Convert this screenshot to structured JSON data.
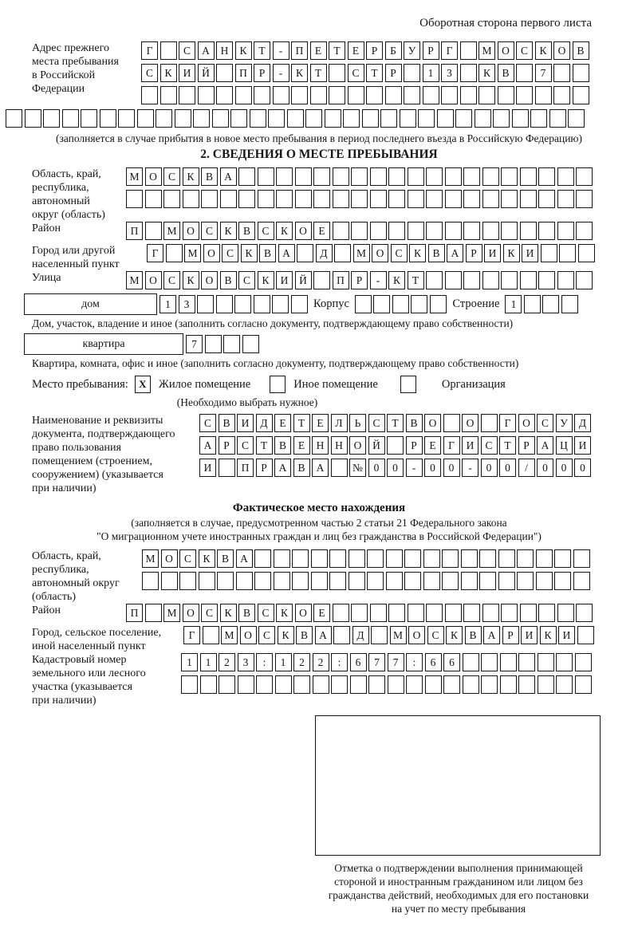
{
  "colors": {
    "ink": "#161616",
    "paper": "#ffffff"
  },
  "header": {
    "title": "Оборотная сторона первого листа"
  },
  "prev_address": {
    "label": [
      "Адрес прежнего",
      "места пребывания",
      "в Российской",
      "Федерации"
    ],
    "row1": [
      "Г",
      "",
      "С",
      "А",
      "Н",
      "К",
      "Т",
      "-",
      "П",
      "Е",
      "Т",
      "Е",
      "Р",
      "Б",
      "У",
      "Р",
      "Г",
      "",
      "М",
      "О",
      "С",
      "К",
      "О",
      "В"
    ],
    "row2": [
      "С",
      "К",
      "И",
      "Й",
      "",
      "П",
      "Р",
      "-",
      "К",
      "Т",
      "",
      "С",
      "Т",
      "Р",
      "",
      "1",
      "3",
      "",
      "К",
      "В",
      "",
      "7",
      "",
      ""
    ],
    "row3": 24,
    "row4": 31,
    "note": "(заполняется в случае прибытия в новое место пребывания в период последнего въезда в Российскую Федерацию)"
  },
  "section2": {
    "title": "2. СВЕДЕНИЯ О МЕСТЕ ПРЕБЫВАНИЯ",
    "region": {
      "label": [
        "Область, край,",
        "республика,",
        "автономный",
        "округ (область)"
      ],
      "row1": [
        "М",
        "О",
        "С",
        "К",
        "В",
        "А",
        "",
        "",
        "",
        "",
        "",
        "",
        "",
        "",
        "",
        "",
        "",
        "",
        "",
        "",
        "",
        "",
        "",
        "",
        ""
      ],
      "row2": 25
    },
    "district": {
      "label": "Район",
      "row": [
        "П",
        "",
        "М",
        "О",
        "С",
        "К",
        "В",
        "С",
        "К",
        "О",
        "Е",
        "",
        "",
        "",
        "",
        "",
        "",
        "",
        "",
        "",
        "",
        "",
        "",
        "",
        ""
      ]
    },
    "city": {
      "label": [
        "Город или другой",
        "населенный пункт"
      ],
      "row": [
        "Г",
        "",
        "М",
        "О",
        "С",
        "К",
        "В",
        "А",
        "",
        "Д",
        "",
        "М",
        "О",
        "С",
        "К",
        "В",
        "А",
        "Р",
        "И",
        "К",
        "И",
        "",
        "",
        ""
      ]
    },
    "street": {
      "label": "Улица",
      "row": [
        "М",
        "О",
        "С",
        "К",
        "О",
        "В",
        "С",
        "К",
        "И",
        "Й",
        "",
        "П",
        "Р",
        "-",
        "К",
        "Т",
        "",
        "",
        "",
        "",
        "",
        "",
        "",
        "",
        ""
      ]
    },
    "house": {
      "box_label": "дом",
      "number": [
        "1",
        "3",
        "",
        "",
        "",
        "",
        "",
        ""
      ],
      "korpus_label": "Корпус",
      "korpus_boxes": 5,
      "stroenie_label": "Строение",
      "stroenie": [
        "1",
        "",
        "",
        ""
      ]
    },
    "house_note": "Дом, участок, владение и иное (заполнить согласно документу, подтверждающему право собственности)",
    "apartment": {
      "box_label": "квартира",
      "number": [
        "7",
        "",
        "",
        ""
      ]
    },
    "apartment_note": "Квартира, комната, офис и иное (заполнить согласно документу, подтверждающему право собственности)",
    "place_type": {
      "label": "Место пребывания:",
      "options": [
        {
          "label": "Жилое помещение",
          "mark": "X"
        },
        {
          "label": "Иное помещение",
          "mark": ""
        },
        {
          "label": "Организация",
          "mark": ""
        }
      ],
      "note": "(Необходимо выбрать нужное)"
    },
    "document": {
      "label": [
        "Наименование и реквизиты",
        "документа, подтверждающего",
        "право пользования",
        "помещением (строением,",
        "сооружением) (указывается",
        "при наличии)"
      ],
      "row1": [
        "С",
        "В",
        "И",
        "Д",
        "Е",
        "Т",
        "Е",
        "Л",
        "Ь",
        "С",
        "Т",
        "В",
        "О",
        "",
        "О",
        "",
        "Г",
        "О",
        "С",
        "У",
        "Д"
      ],
      "row2": [
        "А",
        "Р",
        "С",
        "Т",
        "В",
        "Е",
        "Н",
        "Н",
        "О",
        "Й",
        "",
        "Р",
        "Е",
        "Г",
        "И",
        "С",
        "Т",
        "Р",
        "А",
        "Ц",
        "И"
      ],
      "row3": [
        "И",
        "",
        "П",
        "Р",
        "А",
        "В",
        "А",
        "",
        "№",
        "0",
        "0",
        "-",
        "0",
        "0",
        "-",
        "0",
        "0",
        "/",
        "0",
        "0",
        "0"
      ]
    }
  },
  "actual_location": {
    "title": "Фактическое место нахождения",
    "notes": [
      "(заполняется в случае, предусмотренном частью 2 статьи 21 Федерального закона",
      "\"О миграционном учете иностранных граждан и лиц без гражданства в Российской Федерации\")"
    ],
    "region": {
      "label": [
        "Область, край,",
        "республика,",
        "автономный округ",
        "(область)"
      ],
      "row1": [
        "М",
        "О",
        "С",
        "К",
        "В",
        "А",
        "",
        "",
        "",
        "",
        "",
        "",
        "",
        "",
        "",
        "",
        "",
        "",
        "",
        "",
        "",
        "",
        "",
        ""
      ],
      "row2": 24
    },
    "district": {
      "label": "Район",
      "row": [
        "П",
        "",
        "М",
        "О",
        "С",
        "К",
        "В",
        "С",
        "К",
        "О",
        "Е",
        "",
        "",
        "",
        "",
        "",
        "",
        "",
        "",
        "",
        "",
        "",
        "",
        "",
        ""
      ]
    },
    "city": {
      "label": [
        "Город, сельское поселение,",
        "иной населенный пункт"
      ],
      "row": [
        "Г",
        "",
        "М",
        "О",
        "С",
        "К",
        "В",
        "А",
        "",
        "Д",
        "",
        "М",
        "О",
        "С",
        "К",
        "В",
        "А",
        "Р",
        "И",
        "К",
        "И",
        ""
      ]
    },
    "cadastre": {
      "label": [
        "Кадастровый номер",
        "земельного или лесного",
        "участка (указывается",
        "при наличии)"
      ],
      "row1": [
        "1",
        "1",
        "2",
        "3",
        ":",
        "1",
        "2",
        "2",
        ":",
        "6",
        "7",
        "7",
        ":",
        "6",
        "6",
        "",
        "",
        "",
        "",
        "",
        "",
        ""
      ],
      "row2": 22
    }
  },
  "confirmation": {
    "caption": [
      "Отметка о подтверждении выполнения принимающей",
      "стороной и иностранным гражданином или лицом без",
      "гражданства действий, необходимых для его постановки",
      "на учет по месту пребывания"
    ]
  }
}
